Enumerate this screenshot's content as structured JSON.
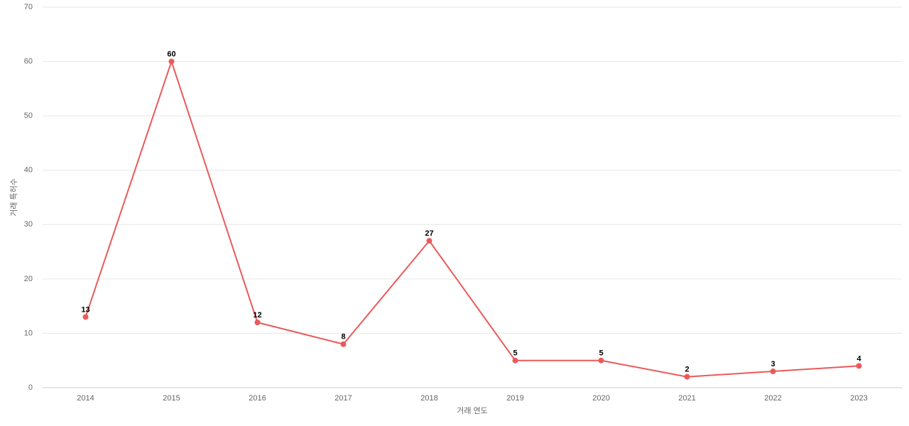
{
  "chart_data": {
    "type": "line",
    "x_label": "거래 연도",
    "y_label": "거래 특허수",
    "categories": [
      "2014",
      "2015",
      "2016",
      "2017",
      "2018",
      "2019",
      "2020",
      "2021",
      "2022",
      "2023"
    ],
    "series": [
      {
        "name": "거래 특허수",
        "color": "#ea5a5a",
        "values": [
          13,
          60,
          12,
          8,
          27,
          5,
          5,
          2,
          3,
          4
        ]
      }
    ],
    "ylim": [
      0,
      70
    ],
    "yticks": [
      0,
      10,
      20,
      30,
      40,
      50,
      60,
      70
    ],
    "grid": true
  }
}
